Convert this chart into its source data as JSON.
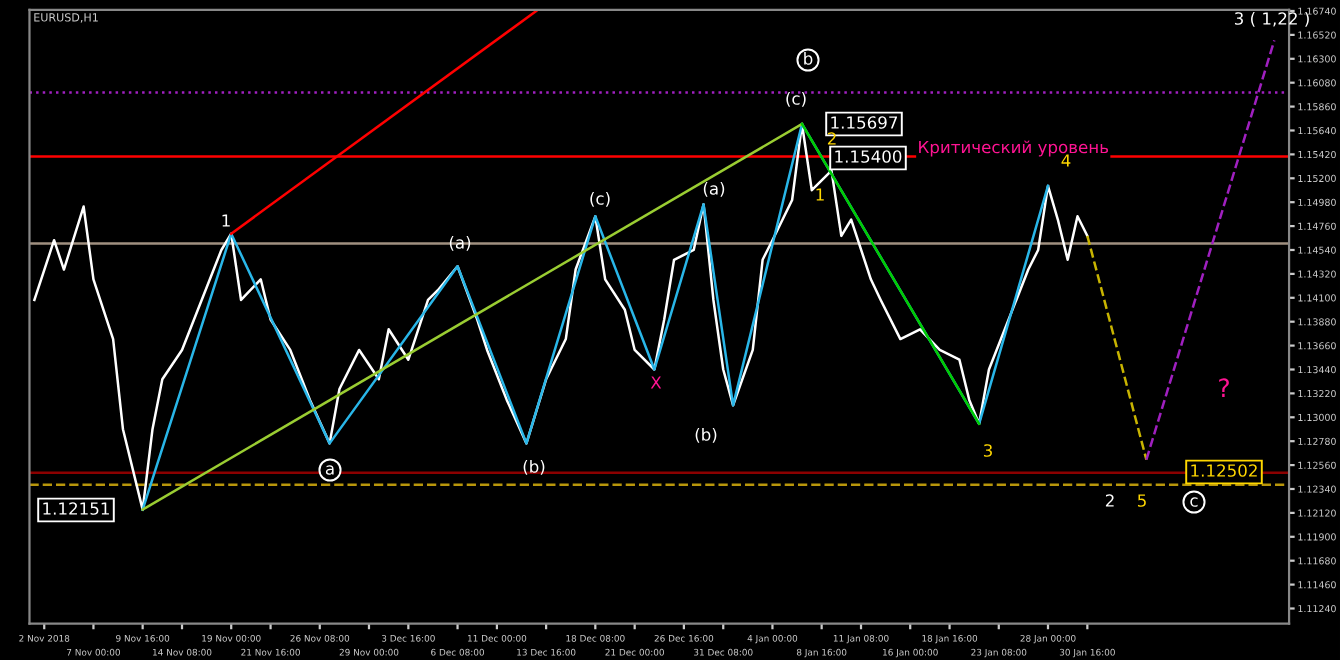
{
  "chart_data": {
    "type": "line",
    "title": "EURUSD,H1",
    "categories": [
      null,
      "2 Nov 2018",
      null,
      null,
      null,
      null,
      "7 Nov 00:00",
      null,
      null,
      null,
      null,
      "9 Nov 16:00",
      null,
      null,
      null,
      "14 Nov 08:00",
      null,
      null,
      null,
      null,
      "19 Nov 00:00",
      null,
      null,
      null,
      "21 Nov 16:00",
      null,
      null,
      null,
      null,
      "26 Nov 08:00",
      null,
      null,
      null,
      null,
      "29 Nov 00:00",
      null,
      null,
      null,
      "3 Dec 16:00",
      null,
      null,
      null,
      null,
      "6 Dec 08:00",
      null,
      null,
      null,
      "11 Dec 00:00",
      null,
      null,
      null,
      null,
      "13 Dec 16:00",
      null,
      null,
      null,
      null,
      "18 Dec 08:00",
      null,
      null,
      null,
      "21 Dec 00:00",
      null,
      null,
      null,
      null,
      "26 Dec 16:00",
      null,
      null,
      null,
      "31 Dec 08:00",
      null,
      null,
      null,
      null,
      "4 Jan 00:00",
      null,
      null,
      null,
      null,
      "8 Jan 16:00",
      null,
      null,
      null,
      "11 Jan 08:00",
      null,
      null,
      null,
      null,
      "16 Jan 00:00",
      null,
      null,
      null,
      "18 Jan 16:00",
      null,
      null,
      null,
      null,
      "23 Jan 08:00",
      null,
      null,
      null,
      null,
      "28 Jan 00:00",
      null,
      null,
      null,
      "30 Jan 16:00",
      null,
      null,
      null,
      null,
      null,
      null,
      null,
      null,
      null,
      null,
      null,
      null,
      null,
      null,
      null,
      null,
      null,
      null,
      null,
      null
    ],
    "ylim": [
      1.111,
      1.1675
    ],
    "yticks": [
      {
        "value": 1.1674,
        "label": "1.16740"
      },
      {
        "value": 1.1652,
        "label": "1.16520"
      },
      {
        "value": 1.163,
        "label": "1.16300"
      },
      {
        "value": 1.1608,
        "label": "1.16080"
      },
      {
        "value": 1.1586,
        "label": "1.15860"
      },
      {
        "value": 1.1564,
        "label": "1.15640"
      },
      {
        "value": 1.1542,
        "label": "1.15420"
      },
      {
        "value": 1.152,
        "label": "1.15200"
      },
      {
        "value": 1.1498,
        "label": "1.14980"
      },
      {
        "value": 1.1476,
        "label": "1.14760"
      },
      {
        "value": 1.1454,
        "label": "1.14540"
      },
      {
        "value": 1.1432,
        "label": "1.14320"
      },
      {
        "value": 1.141,
        "label": "1.14100"
      },
      {
        "value": 1.1388,
        "label": "1.13880"
      },
      {
        "value": 1.1366,
        "label": "1.13660"
      },
      {
        "value": 1.1344,
        "label": "1.13440"
      },
      {
        "value": 1.1322,
        "label": "1.13220"
      },
      {
        "value": 1.13,
        "label": "1.13000"
      },
      {
        "value": 1.1278,
        "label": "1.12780"
      },
      {
        "value": 1.1256,
        "label": "1.12560"
      },
      {
        "value": 1.1234,
        "label": "1.12340"
      },
      {
        "value": 1.1212,
        "label": "1.12120"
      },
      {
        "value": 1.119,
        "label": "1.11900"
      },
      {
        "value": 1.1168,
        "label": "1.11680"
      },
      {
        "value": 1.1146,
        "label": "1.11460"
      },
      {
        "value": 1.1124,
        "label": "1.11240"
      }
    ],
    "series": [
      {
        "color": "#ffffff",
        "line_style": "solid",
        "values": [
          1.1408,
          null,
          1.1463,
          1.1436,
          null,
          1.1494,
          1.1427,
          null,
          1.1372,
          1.1289,
          null,
          1.1215,
          1.1289,
          1.1335,
          null,
          1.1362,
          null,
          1.1408,
          null,
          1.1454,
          1.1469,
          1.1408,
          null,
          1.1427,
          1.139,
          null,
          1.1362,
          null,
          1.1316,
          null,
          1.1276,
          1.1326,
          null,
          1.1362,
          null,
          1.1335,
          1.1381,
          null,
          1.1353,
          null,
          1.1408,
          1.1417,
          null,
          1.1439,
          null,
          1.139,
          1.1362,
          null,
          1.1316,
          null,
          1.1276,
          null,
          1.1335,
          null,
          1.1372,
          1.1436,
          null,
          1.1485,
          1.1427,
          null,
          1.1399,
          1.1362,
          null,
          1.1344,
          1.139,
          1.1445,
          null,
          1.1454,
          1.1496,
          1.1408,
          1.1344,
          1.1311,
          null,
          1.1362,
          1.1445,
          1.1463,
          null,
          1.15,
          1.157,
          1.1509,
          null,
          1.1527,
          1.1467,
          1.1482,
          null,
          1.1427,
          1.1408,
          null,
          1.1372,
          null,
          1.1381,
          null,
          1.1362,
          null,
          1.1353,
          1.1316,
          1.1294,
          1.1344,
          null,
          1.139,
          null,
          1.1436,
          1.1454,
          1.1513,
          1.1482,
          1.1445,
          1.1485,
          1.1467,
          null,
          null,
          null,
          null,
          null,
          null,
          null,
          null,
          null,
          null,
          null,
          null,
          null,
          null,
          null,
          null,
          null,
          null,
          null,
          null
        ]
      },
      {
        "color": "#29b6e8",
        "line_style": "solid",
        "values": [
          null,
          null,
          null,
          null,
          null,
          null,
          null,
          null,
          null,
          null,
          null,
          1.1215,
          null,
          null,
          null,
          null,
          null,
          null,
          null,
          null,
          1.1469,
          null,
          null,
          null,
          null,
          null,
          null,
          null,
          null,
          null,
          1.1276,
          null,
          null,
          null,
          null,
          null,
          null,
          null,
          null,
          null,
          null,
          null,
          null,
          1.1439,
          null,
          null,
          null,
          null,
          null,
          null,
          1.1276,
          null,
          null,
          null,
          null,
          null,
          null,
          1.1485,
          null,
          null,
          null,
          null,
          null,
          1.1344,
          null,
          null,
          null,
          null,
          1.1496,
          null,
          null,
          1.1311,
          null,
          null,
          null,
          null,
          null,
          null,
          1.157,
          null,
          null,
          null,
          null,
          null,
          null,
          null,
          null,
          null,
          null,
          null,
          null,
          null,
          null,
          null,
          null,
          null,
          1.1294,
          null,
          null,
          null,
          null,
          null,
          null,
          1.1513,
          null,
          null,
          null,
          null,
          null,
          null,
          null,
          null,
          null,
          null,
          null,
          null,
          null,
          null,
          null,
          null,
          null,
          null,
          null,
          null,
          null,
          null,
          null,
          null
        ]
      },
      {
        "color": "#ff0000",
        "line_style": "solid",
        "values": [
          null,
          null,
          null,
          null,
          null,
          null,
          null,
          null,
          null,
          null,
          null,
          null,
          null,
          null,
          null,
          null,
          null,
          null,
          null,
          null,
          1.1469,
          null,
          null,
          null,
          null,
          null,
          null,
          null,
          null,
          null,
          null,
          null,
          null,
          null,
          null,
          null,
          null,
          null,
          null,
          null,
          null,
          null,
          null,
          null,
          null,
          null,
          null,
          null,
          null,
          null,
          null,
          1.1674,
          null,
          null,
          null,
          null,
          null,
          null,
          null,
          null,
          null,
          null,
          null,
          null,
          null,
          null,
          null,
          null,
          null,
          null,
          null,
          null,
          null,
          null,
          null,
          null,
          null,
          null,
          null,
          null,
          null,
          null,
          null,
          null,
          null,
          null,
          null,
          null,
          null,
          null,
          null,
          null,
          null,
          null,
          null,
          null,
          null,
          null,
          null,
          null,
          null,
          null,
          null,
          null,
          null,
          null,
          null,
          null,
          null,
          null,
          null,
          null,
          null,
          null,
          null,
          null,
          null,
          null,
          null,
          null,
          null,
          null,
          null,
          null,
          null,
          null,
          null,
          null
        ]
      },
      {
        "color": "#9acd32",
        "line_style": "solid",
        "values": [
          null,
          null,
          null,
          null,
          null,
          null,
          null,
          null,
          null,
          null,
          null,
          1.1215,
          null,
          null,
          null,
          null,
          null,
          null,
          null,
          null,
          null,
          null,
          null,
          null,
          null,
          null,
          null,
          null,
          null,
          null,
          null,
          null,
          null,
          null,
          null,
          null,
          null,
          null,
          null,
          null,
          null,
          null,
          null,
          null,
          null,
          null,
          null,
          null,
          null,
          null,
          null,
          null,
          null,
          null,
          null,
          null,
          null,
          null,
          null,
          null,
          null,
          null,
          null,
          null,
          null,
          null,
          null,
          null,
          null,
          null,
          null,
          null,
          null,
          null,
          null,
          null,
          null,
          null,
          1.157,
          null,
          null,
          null,
          null,
          null,
          null,
          null,
          null,
          null,
          null,
          null,
          null,
          null,
          null,
          null,
          null,
          null,
          null,
          null,
          null,
          null,
          null,
          null,
          null,
          null,
          null,
          null,
          null,
          null,
          null,
          null,
          null,
          null,
          null,
          null,
          null,
          null,
          null,
          null,
          null,
          null,
          null,
          null,
          null,
          null,
          null,
          null,
          null,
          null
        ]
      },
      {
        "color": "#00cc00",
        "line_style": "solid",
        "values": [
          null,
          null,
          null,
          null,
          null,
          null,
          null,
          null,
          null,
          null,
          null,
          null,
          null,
          null,
          null,
          null,
          null,
          null,
          null,
          null,
          null,
          null,
          null,
          null,
          null,
          null,
          null,
          null,
          null,
          null,
          null,
          null,
          null,
          null,
          null,
          null,
          null,
          null,
          null,
          null,
          null,
          null,
          null,
          null,
          null,
          null,
          null,
          null,
          null,
          null,
          null,
          null,
          null,
          null,
          null,
          null,
          null,
          null,
          null,
          null,
          null,
          null,
          null,
          null,
          null,
          null,
          null,
          null,
          null,
          null,
          null,
          null,
          null,
          null,
          null,
          null,
          null,
          null,
          1.157,
          null,
          null,
          null,
          null,
          null,
          null,
          null,
          null,
          null,
          null,
          null,
          null,
          null,
          null,
          null,
          null,
          null,
          1.1294,
          null,
          null,
          null,
          null,
          null,
          null,
          null,
          null,
          null,
          null,
          null,
          null,
          null,
          null,
          null,
          null,
          null,
          null,
          null,
          null,
          null,
          null,
          null,
          null,
          null,
          null,
          null,
          null,
          null,
          null,
          null
        ]
      },
      {
        "color": "#c8b400",
        "line_style": "dashed",
        "values": [
          null,
          null,
          null,
          null,
          null,
          null,
          null,
          null,
          null,
          null,
          null,
          null,
          null,
          null,
          null,
          null,
          null,
          null,
          null,
          null,
          null,
          null,
          null,
          null,
          null,
          null,
          null,
          null,
          null,
          null,
          null,
          null,
          null,
          null,
          null,
          null,
          null,
          null,
          null,
          null,
          null,
          null,
          null,
          null,
          null,
          null,
          null,
          null,
          null,
          null,
          null,
          null,
          null,
          null,
          null,
          null,
          null,
          null,
          null,
          null,
          null,
          null,
          null,
          null,
          null,
          null,
          null,
          null,
          null,
          null,
          null,
          null,
          null,
          null,
          null,
          null,
          null,
          null,
          null,
          null,
          null,
          null,
          null,
          null,
          null,
          null,
          null,
          null,
          null,
          null,
          null,
          null,
          null,
          null,
          null,
          null,
          null,
          null,
          null,
          null,
          null,
          null,
          null,
          null,
          null,
          null,
          null,
          1.1467,
          null,
          null,
          null,
          null,
          null,
          1.1261,
          null,
          null,
          null,
          null,
          null,
          null,
          null,
          null,
          null,
          null,
          null,
          null,
          null,
          null
        ]
      },
      {
        "color": "#a020c0",
        "line_style": "dashed",
        "values": [
          null,
          null,
          null,
          null,
          null,
          null,
          null,
          null,
          null,
          null,
          null,
          null,
          null,
          null,
          null,
          null,
          null,
          null,
          null,
          null,
          null,
          null,
          null,
          null,
          null,
          null,
          null,
          null,
          null,
          null,
          null,
          null,
          null,
          null,
          null,
          null,
          null,
          null,
          null,
          null,
          null,
          null,
          null,
          null,
          null,
          null,
          null,
          null,
          null,
          null,
          null,
          null,
          null,
          null,
          null,
          null,
          null,
          null,
          null,
          null,
          null,
          null,
          null,
          null,
          null,
          null,
          null,
          null,
          null,
          null,
          null,
          null,
          null,
          null,
          null,
          null,
          null,
          null,
          null,
          null,
          null,
          null,
          null,
          null,
          null,
          null,
          null,
          null,
          null,
          null,
          null,
          null,
          null,
          null,
          null,
          null,
          null,
          null,
          null,
          null,
          null,
          null,
          null,
          null,
          null,
          null,
          null,
          null,
          null,
          null,
          null,
          null,
          null,
          1.1261,
          null,
          null,
          null,
          null,
          null,
          null,
          null,
          null,
          null,
          null,
          null,
          null,
          1.1647,
          null
        ]
      }
    ],
    "ref_lines": [
      {
        "axis": "y",
        "value": 1.154,
        "label": "Критический уровень",
        "color": "#ff0000",
        "line_style": "solid"
      },
      {
        "axis": "y",
        "value": 1.1599,
        "color": "#a020c0",
        "line_style": "dotted"
      },
      {
        "axis": "y",
        "value": 1.146,
        "color": "#a09080",
        "line_style": "solid"
      },
      {
        "axis": "y",
        "value": 1.1249,
        "color": "#8b0000",
        "line_style": "solid"
      },
      {
        "axis": "y",
        "value": 1.1238,
        "color": "#b8960b",
        "line_style": "dashed"
      }
    ],
    "annotations": [
      "1",
      "a",
      "(a)",
      "(b)",
      "(c)",
      "X",
      "(a)",
      "(b)",
      "(c)",
      "b",
      "1.15697",
      "1.15400",
      "1.12151",
      "2",
      "1",
      "3",
      "4",
      "1.12502",
      "3 ( 1,22 )",
      "?",
      "2",
      "5",
      "c"
    ]
  }
}
